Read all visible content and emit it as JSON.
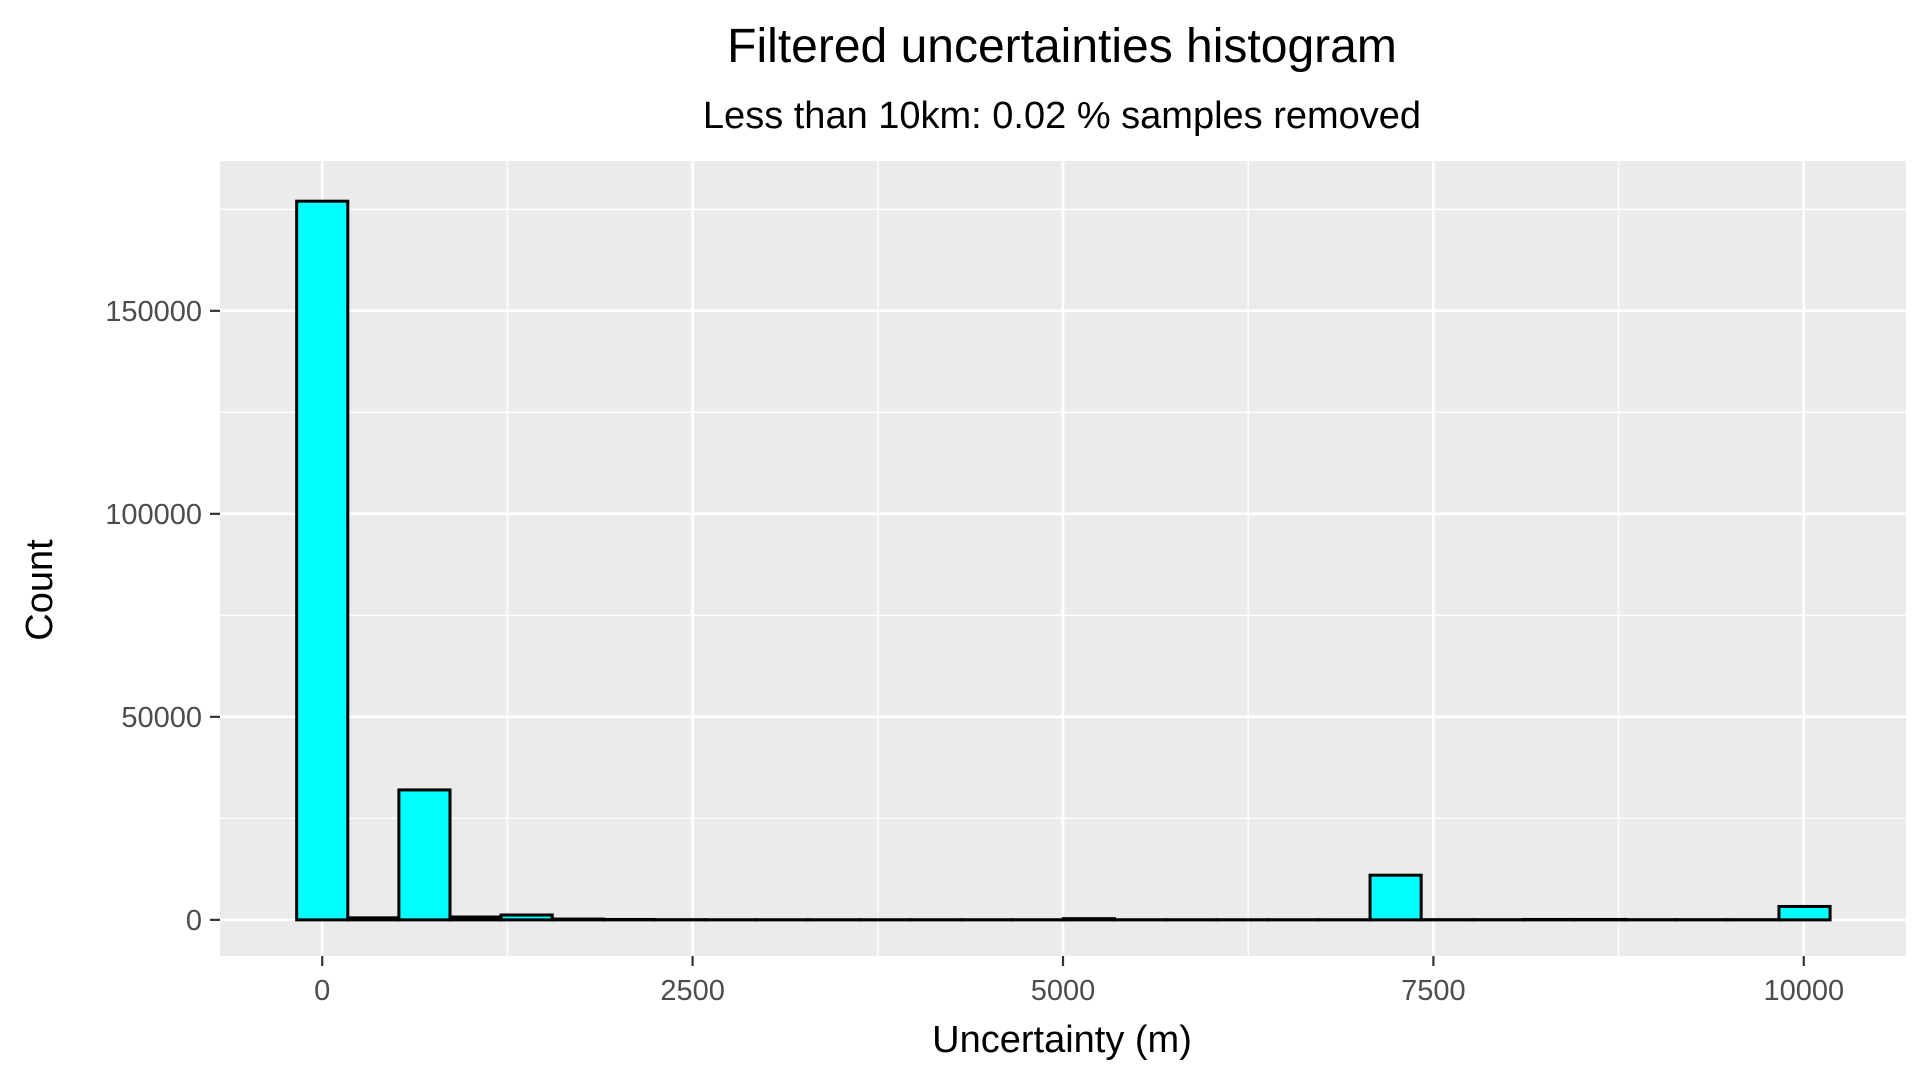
{
  "chart_data": {
    "type": "bar",
    "title": "Filtered uncertainties histogram",
    "subtitle": "Less than 10km: 0.02 % samples removed",
    "xlabel": "Uncertainty (m)",
    "ylabel": "Count",
    "xlim": [
      -690,
      10690
    ],
    "ylim": [
      -8900,
      186900
    ],
    "x_ticks": [
      0,
      2500,
      5000,
      7500,
      10000
    ],
    "x_tick_labels": [
      "0",
      "2500",
      "5000",
      "7500",
      "10000"
    ],
    "y_ticks": [
      0,
      50000,
      100000,
      150000
    ],
    "y_tick_labels": [
      "0",
      "50000",
      "100000",
      "150000"
    ],
    "bin_width": 345,
    "bin_centers": [
      0,
      345,
      690,
      1035,
      1380,
      1725,
      2070,
      2415,
      2760,
      3105,
      3450,
      3795,
      4140,
      4485,
      4830,
      5175,
      5520,
      5865,
      6210,
      6555,
      6900,
      7245,
      7590,
      7935,
      8280,
      8625,
      8970,
      9315,
      9660,
      10005
    ],
    "values": [
      177000,
      500,
      32000,
      700,
      1200,
      200,
      100,
      50,
      30,
      30,
      30,
      30,
      30,
      30,
      30,
      300,
      30,
      30,
      30,
      30,
      30,
      11000,
      50,
      50,
      100,
      100,
      50,
      50,
      50,
      3300
    ],
    "bar_fill": "#00ffff",
    "bar_stroke": "#000000",
    "panel_background": "#ebebeb",
    "grid_color": "#ffffff",
    "grid": true,
    "legend": "none"
  }
}
